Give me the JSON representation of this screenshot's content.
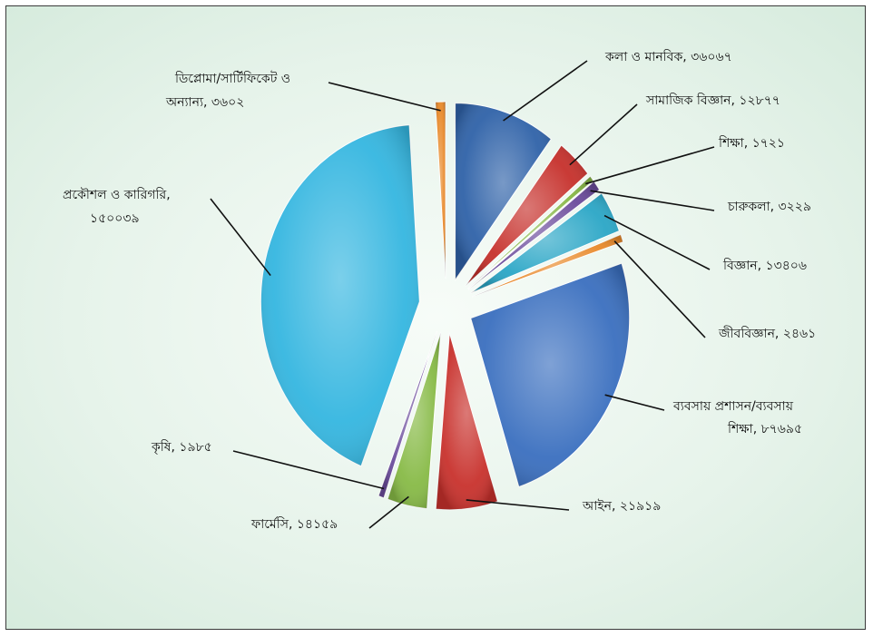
{
  "chart_data": {
    "type": "pie",
    "title": "",
    "series": [
      {
        "label": "কলা ও মানবিক, ৩৬০৬৭",
        "value": 36067,
        "color": "#2f62a8"
      },
      {
        "label": "সামাজিক বিজ্ঞান, ১২৮৭৭",
        "value": 12877,
        "color": "#c6302b"
      },
      {
        "label": "শিক্ষা, ১৭২১",
        "value": 1721,
        "color": "#86b845"
      },
      {
        "label": "চারুকলা, ৩২২৯",
        "value": 3229,
        "color": "#6a4a9b"
      },
      {
        "label": "বিজ্ঞান, ১৩৪০৬",
        "value": 13406,
        "color": "#2aa6c6"
      },
      {
        "label": "জীববিজ্ঞান, ২৪৬১",
        "value": 2461,
        "color": "#e8892a"
      },
      {
        "label": "ব্যবসায় প্রশাসন/ব্যবসায় শিক্ষা, ৮৭৬৯৫",
        "value": 87695,
        "color": "#3a6fbf"
      },
      {
        "label": "আইন, ২১৯১৯",
        "value": 21919,
        "color": "#c8312c"
      },
      {
        "label": "ফার্মেসি, ১৪১৫৯",
        "value": 14159,
        "color": "#87ba46"
      },
      {
        "label": "কৃষি, ১৯৮৫",
        "value": 1985,
        "color": "#6b4c9c"
      },
      {
        "label": "প্রকৌশল ও কারিগরি, ১৫০০৩৯",
        "value": 150039,
        "color": "#34b6e0"
      },
      {
        "label": "ডিপ্লোমা/সার্টিফিকেট ও অন্যান্য, ৩৬০২",
        "value": 3602,
        "color": "#e8892a"
      }
    ],
    "legend": "none"
  }
}
